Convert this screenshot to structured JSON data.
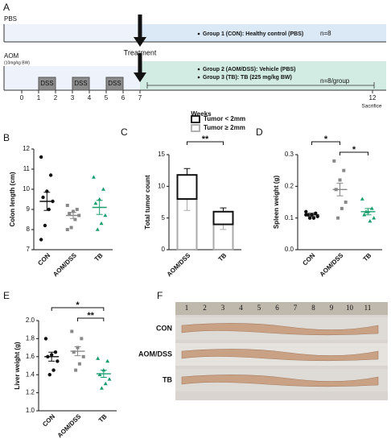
{
  "panel_labels": [
    "A",
    "B",
    "C",
    "D",
    "E",
    "F"
  ],
  "timeline": {
    "pbs_label": "PBS",
    "group1": "Group 1 (CON): Healthy control (PBS)",
    "group1_n": "n=8",
    "aom_label": "AOM",
    "aom_dose": "(10mg/kg BW)",
    "treatment": "Treatment",
    "treatment_week": 7,
    "group2": "Group 2 (AOM/DSS): Vehicle (PBS)",
    "group3": "Group 3 (TB): TB (225 mg/kg BW)",
    "group23_n": "n=8/group",
    "weeks": [
      0,
      1,
      2,
      3,
      4,
      5,
      6,
      7,
      12
    ],
    "axis_label": "Weeks",
    "end_label": "Sacrifice",
    "dss": [
      {
        "label": "DSS",
        "start": 1,
        "end": 2
      },
      {
        "label": "DSS",
        "start": 3,
        "end": 4
      },
      {
        "label": "DSS",
        "start": 5,
        "end": 6
      }
    ]
  },
  "chart_data": [
    {
      "type": "scatter_dot",
      "ylabel": "Colon length (cm)",
      "ylim": [
        7,
        12
      ],
      "yticks": [
        7,
        8,
        9,
        10,
        11,
        12
      ],
      "groups": [
        {
          "name": "CON",
          "color": "#111111",
          "marker": "circle",
          "points": [
            11.6,
            10.7,
            9.9,
            9.6,
            9.4,
            9.0,
            8.2,
            7.5
          ],
          "mean": 9.4,
          "sem": 0.45
        },
        {
          "name": "AOM/DSS",
          "color": "#888888",
          "marker": "square",
          "points": [
            9.2,
            9.0,
            8.9,
            8.8,
            8.7,
            8.5,
            8.1,
            8.0
          ],
          "mean": 8.7,
          "sem": 0.15
        },
        {
          "name": "TB",
          "color": "#1a9e6e",
          "marker": "triangle",
          "points": [
            10.6,
            10.0,
            9.5,
            9.3,
            8.7,
            8.3,
            8.0
          ],
          "mean": 9.1,
          "sem": 0.35
        }
      ],
      "comparisons": []
    },
    {
      "type": "stacked_bar",
      "ylabel": "Total tumor count",
      "ylim": [
        0,
        15
      ],
      "yticks": [
        0,
        5,
        10,
        15
      ],
      "categories": [
        "AOM/DSS",
        "TB"
      ],
      "series": [
        {
          "name": "Tumor ≥ 2mm",
          "color": "#aaaaaa",
          "values": [
            8,
            4
          ],
          "errors": [
            1.8,
            0.8
          ]
        },
        {
          "name": "Tumor < 2mm",
          "color": "#111111",
          "values": [
            3.8,
            2
          ],
          "errors": [
            1.0,
            0.6
          ]
        }
      ],
      "comparisons": [
        {
          "groups": [
            0,
            1
          ],
          "label": "**"
        }
      ]
    },
    {
      "type": "scatter_dot",
      "ylabel": "Spleen weight (g)",
      "ylim": [
        0,
        0.3
      ],
      "yticks": [
        {
          "value": 0,
          "label": "0.0"
        },
        0.1,
        0.2,
        0.3
      ],
      "groups": [
        {
          "name": "CON",
          "color": "#111111",
          "marker": "circle",
          "points": [
            0.12,
            0.115,
            0.11,
            0.11,
            0.105,
            0.1,
            0.1,
            0.11
          ],
          "mean": 0.11,
          "sem": 0.005
        },
        {
          "name": "AOM/DSS",
          "color": "#888888",
          "marker": "square",
          "points": [
            0.28,
            0.25,
            0.22,
            0.19,
            0.15,
            0.13,
            0.1
          ],
          "mean": 0.19,
          "sem": 0.02
        },
        {
          "name": "TB",
          "color": "#1a9e6e",
          "marker": "triangle",
          "points": [
            0.16,
            0.13,
            0.12,
            0.11,
            0.1,
            0.09,
            0.12
          ],
          "mean": 0.12,
          "sem": 0.01
        }
      ],
      "comparisons": [
        {
          "groups": [
            0,
            1
          ],
          "label": "*"
        },
        {
          "groups": [
            1,
            2
          ],
          "label": "*"
        }
      ]
    },
    {
      "type": "scatter_dot",
      "ylabel": "Liver weight (g)",
      "ylim": [
        1.0,
        2.0
      ],
      "yticks": [
        {
          "value": 1.0,
          "label": "1.0"
        },
        1.2,
        1.4,
        1.6,
        1.8,
        {
          "value": 2.0,
          "label": "2.0"
        }
      ],
      "groups": [
        {
          "name": "CON",
          "color": "#111111",
          "marker": "circle",
          "points": [
            1.8,
            1.65,
            1.62,
            1.6,
            1.55,
            1.45,
            1.4
          ],
          "mean": 1.6,
          "sem": 0.05
        },
        {
          "name": "AOM/DSS",
          "color": "#888888",
          "marker": "square",
          "points": [
            1.88,
            1.8,
            1.7,
            1.65,
            1.6,
            1.52,
            1.45
          ],
          "mean": 1.66,
          "sem": 0.05
        },
        {
          "name": "TB",
          "color": "#1a9e6e",
          "marker": "triangle",
          "points": [
            1.58,
            1.55,
            1.45,
            1.4,
            1.35,
            1.3,
            1.25
          ],
          "mean": 1.41,
          "sem": 0.04
        }
      ],
      "comparisons": [
        {
          "groups": [
            0,
            2
          ],
          "label": "*"
        },
        {
          "groups": [
            1,
            2
          ],
          "label": "**"
        }
      ]
    }
  ],
  "photo": {
    "ruler": [
      1,
      2,
      3,
      4,
      5,
      6,
      7,
      8,
      9,
      10,
      11
    ],
    "rows": [
      "CON",
      "AOM/DSS",
      "TB"
    ]
  }
}
